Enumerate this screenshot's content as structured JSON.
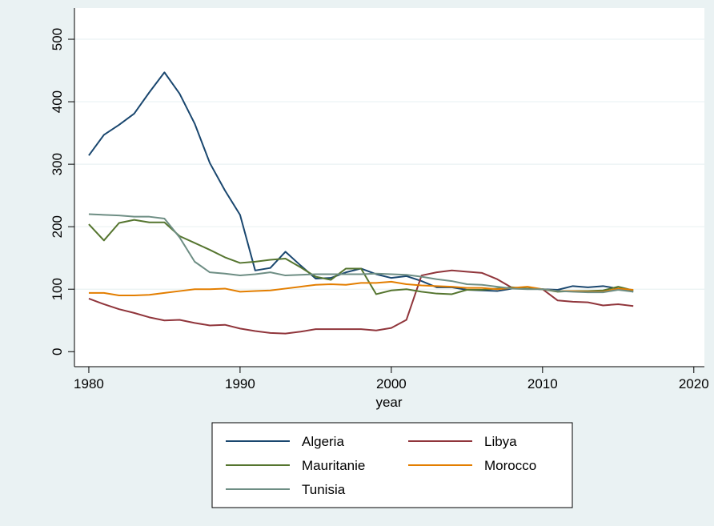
{
  "chart_data": {
    "type": "line",
    "x_label": "year",
    "x": [
      1980,
      1981,
      1982,
      1983,
      1984,
      1985,
      1986,
      1987,
      1988,
      1989,
      1990,
      1991,
      1992,
      1993,
      1994,
      1995,
      1996,
      1997,
      1998,
      1999,
      2000,
      2001,
      2002,
      2003,
      2004,
      2005,
      2006,
      2007,
      2008,
      2009,
      2010,
      2011,
      2012,
      2013,
      2014,
      2015,
      2016
    ],
    "series": [
      {
        "name": "Algeria",
        "color": "#1a476f",
        "values": [
          314,
          347,
          363,
          381,
          415,
          447,
          413,
          365,
          302,
          258,
          219,
          130,
          134,
          160,
          138,
          117,
          118,
          127,
          133,
          124,
          118,
          121,
          113,
          103,
          103,
          99,
          98,
          97,
          101,
          101,
          100,
          99,
          105,
          103,
          105,
          101,
          96
        ]
      },
      {
        "name": "Libya",
        "color": "#90353b",
        "values": [
          85,
          76,
          68,
          62,
          55,
          50,
          51,
          46,
          42,
          43,
          37,
          33,
          30,
          29,
          32,
          36,
          36,
          36,
          36,
          34,
          38,
          51,
          122,
          127,
          130,
          128,
          126,
          116,
          102,
          101,
          100,
          82,
          80,
          79,
          74,
          76,
          73
        ]
      },
      {
        "name": "Mauritanie",
        "color": "#55752f",
        "values": [
          204,
          178,
          206,
          211,
          207,
          207,
          185,
          174,
          163,
          151,
          142,
          144,
          147,
          149,
          135,
          120,
          115,
          133,
          133,
          92,
          98,
          100,
          96,
          93,
          92,
          99,
          99,
          101,
          103,
          101,
          100,
          96,
          97,
          97,
          98,
          104,
          98
        ]
      },
      {
        "name": "Morocco",
        "color": "#e37e00",
        "values": [
          94,
          94,
          90,
          90,
          91,
          94,
          97,
          100,
          100,
          101,
          96,
          97,
          98,
          101,
          104,
          107,
          108,
          107,
          110,
          110,
          112,
          108,
          106,
          105,
          104,
          102,
          102,
          100,
          102,
          104,
          100,
          97,
          97,
          96,
          96,
          101,
          99
        ]
      },
      {
        "name": "Tunisia",
        "color": "#6e8e84",
        "values": [
          220,
          219,
          218,
          216,
          216,
          213,
          183,
          144,
          127,
          125,
          122,
          124,
          127,
          122,
          123,
          124,
          124,
          124,
          124,
          125,
          124,
          123,
          120,
          116,
          113,
          108,
          107,
          104,
          101,
          100,
          100,
          97,
          96,
          95,
          95,
          99,
          96
        ]
      }
    ],
    "xlim": [
      1979.05,
      2020.7
    ],
    "ylim": [
      -24,
      550
    ],
    "xticks": [
      1980,
      1990,
      2000,
      2010,
      2020
    ],
    "yticks": [
      0,
      100,
      200,
      300,
      400,
      500
    ],
    "grid": true,
    "legend": "bottom"
  }
}
